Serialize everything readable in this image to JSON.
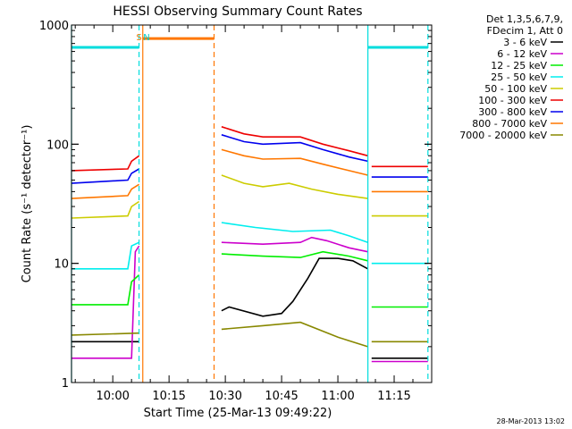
{
  "chart_data": {
    "type": "line",
    "title": "HESSI Observing Summary Count Rates",
    "xlabel": "Start Time (25-Mar-13 09:49:22)",
    "ylabel": "Count Rate (s⁻¹ detector⁻¹)",
    "y_scale": "log",
    "ylim": [
      1,
      1000
    ],
    "y_ticks": [
      {
        "v": 1,
        "label": "1"
      },
      {
        "v": 10,
        "label": "10"
      },
      {
        "v": 100,
        "label": "100"
      },
      {
        "v": 1000,
        "label": "1000"
      }
    ],
    "xlim": [
      "09:49",
      "11:25"
    ],
    "x_ticks": [
      {
        "t": "10:00",
        "label": "10:00"
      },
      {
        "t": "10:15",
        "label": "10:15"
      },
      {
        "t": "10:30",
        "label": "10:30"
      },
      {
        "t": "10:45",
        "label": "10:45"
      },
      {
        "t": "11:00",
        "label": "11:00"
      },
      {
        "t": "11:15",
        "label": "11:15"
      }
    ],
    "legend": {
      "position": "right",
      "header": [
        "Det 1,3,5,6,7,9,",
        "FDecim 1, Att 0"
      ]
    },
    "series": [
      {
        "name": "3 - 6 keV",
        "color": "#000000",
        "segments": [
          {
            "x": [
              "09:49",
              "10:07"
            ],
            "y": [
              2.2,
              2.2
            ]
          },
          {
            "x": [
              "10:29",
              "10:31",
              "10:40",
              "10:45",
              "10:48",
              "10:52",
              "10:55",
              "11:00",
              "11:04",
              "11:08"
            ],
            "y": [
              4.0,
              4.3,
              3.6,
              3.8,
              4.8,
              7.5,
              11,
              11,
              10.5,
              9
            ]
          },
          {
            "x": [
              "11:09",
              "11:24"
            ],
            "y": [
              1.6,
              1.6
            ]
          }
        ]
      },
      {
        "name": "6 - 12 keV",
        "color": "#cc00cc",
        "segments": [
          {
            "x": [
              "09:49",
              "10:05",
              "10:06",
              "10:07"
            ],
            "y": [
              1.6,
              1.6,
              12.5,
              14
            ]
          },
          {
            "x": [
              "10:29",
              "10:40",
              "10:50",
              "10:53",
              "10:57",
              "11:03",
              "11:08"
            ],
            "y": [
              15,
              14.5,
              15,
              16.5,
              15.5,
              13.5,
              12.5
            ]
          },
          {
            "x": [
              "11:09",
              "11:24"
            ],
            "y": [
              1.5,
              1.5
            ]
          }
        ]
      },
      {
        "name": "12 - 25 keV",
        "color": "#00ee00",
        "segments": [
          {
            "x": [
              "09:49",
              "10:04",
              "10:05",
              "10:07"
            ],
            "y": [
              4.5,
              4.5,
              7.0,
              8.0
            ]
          },
          {
            "x": [
              "10:29",
              "10:40",
              "10:50",
              "10:56",
              "11:03",
              "11:08"
            ],
            "y": [
              12,
              11.5,
              11.2,
              12.5,
              11.5,
              10.5
            ]
          },
          {
            "x": [
              "11:09",
              "11:24"
            ],
            "y": [
              4.3,
              4.3
            ]
          }
        ]
      },
      {
        "name": "25 - 50 keV",
        "color": "#00eeee",
        "segments": [
          {
            "x": [
              "09:49",
              "10:04",
              "10:05",
              "10:07"
            ],
            "y": [
              9.0,
              9.0,
              14,
              15
            ]
          },
          {
            "x": [
              "10:29",
              "10:38",
              "10:48",
              "10:58",
              "11:03",
              "11:08"
            ],
            "y": [
              22,
              20,
              18.5,
              19,
              17,
              15
            ]
          },
          {
            "x": [
              "11:09",
              "11:24"
            ],
            "y": [
              10,
              10
            ]
          }
        ]
      },
      {
        "name": "50 - 100 keV",
        "color": "#cccc00",
        "segments": [
          {
            "x": [
              "09:49",
              "10:04",
              "10:05",
              "10:07"
            ],
            "y": [
              24,
              25,
              30,
              33
            ]
          },
          {
            "x": [
              "10:29",
              "10:35",
              "10:40",
              "10:47",
              "10:53",
              "11:00",
              "11:08"
            ],
            "y": [
              55,
              47,
              44,
              47,
              42,
              38,
              35
            ]
          },
          {
            "x": [
              "11:09",
              "11:24"
            ],
            "y": [
              25,
              25
            ]
          }
        ]
      },
      {
        "name": "100 - 300 keV",
        "color": "#ee0000",
        "segments": [
          {
            "x": [
              "09:49",
              "10:04",
              "10:05",
              "10:07"
            ],
            "y": [
              60,
              62,
              72,
              80
            ]
          },
          {
            "x": [
              "10:29",
              "10:35",
              "10:40",
              "10:50",
              "10:56",
              "11:03",
              "11:08"
            ],
            "y": [
              140,
              122,
              115,
              115,
              100,
              88,
              80
            ]
          },
          {
            "x": [
              "11:09",
              "11:24"
            ],
            "y": [
              65,
              65
            ]
          }
        ]
      },
      {
        "name": "300 - 800 keV",
        "color": "#0000ee",
        "segments": [
          {
            "x": [
              "09:49",
              "10:04",
              "10:05",
              "10:07"
            ],
            "y": [
              47,
              50,
              57,
              62
            ]
          },
          {
            "x": [
              "10:29",
              "10:35",
              "10:40",
              "10:50",
              "10:56",
              "11:03",
              "11:08"
            ],
            "y": [
              120,
              105,
              100,
              103,
              90,
              78,
              72
            ]
          },
          {
            "x": [
              "11:09",
              "11:24"
            ],
            "y": [
              53,
              53
            ]
          }
        ]
      },
      {
        "name": "800 - 7000 keV",
        "color": "#ff7700",
        "segments": [
          {
            "x": [
              "09:49",
              "10:04",
              "10:05",
              "10:07"
            ],
            "y": [
              35,
              37,
              42,
              46
            ]
          },
          {
            "x": [
              "10:29",
              "10:35",
              "10:40",
              "10:50",
              "10:56",
              "11:03",
              "11:08"
            ],
            "y": [
              90,
              80,
              75,
              76,
              68,
              60,
              55
            ]
          },
          {
            "x": [
              "11:09",
              "11:24"
            ],
            "y": [
              40,
              40
            ]
          }
        ]
      },
      {
        "name": "7000 - 20000 keV",
        "color": "#888800",
        "segments": [
          {
            "x": [
              "09:49",
              "10:07"
            ],
            "y": [
              2.5,
              2.6
            ]
          },
          {
            "x": [
              "10:29",
              "10:40",
              "10:50",
              "11:00",
              "11:08"
            ],
            "y": [
              2.8,
              3.0,
              3.2,
              2.4,
              2.0
            ]
          },
          {
            "x": [
              "11:09",
              "11:24"
            ],
            "y": [
              2.2,
              2.2
            ]
          }
        ]
      }
    ],
    "annotations": [
      {
        "label": "S",
        "t": "10:07",
        "color": "#ff7700"
      },
      {
        "label": "N",
        "t": "10:09",
        "color": "#00cccc"
      }
    ],
    "markers": {
      "cyan_vlines": [
        "09:49",
        "10:07",
        "11:08",
        "11:24"
      ],
      "orange_vlines": [
        "10:08",
        "10:27"
      ],
      "cyan_bars": [
        [
          "09:49",
          "10:07"
        ],
        [
          "11:08",
          "11:24"
        ]
      ],
      "orange_bar": [
        "10:08",
        "10:27"
      ],
      "bar_level": 650
    },
    "grid": false,
    "timestamp": "28-Mar-2013 13:02"
  }
}
